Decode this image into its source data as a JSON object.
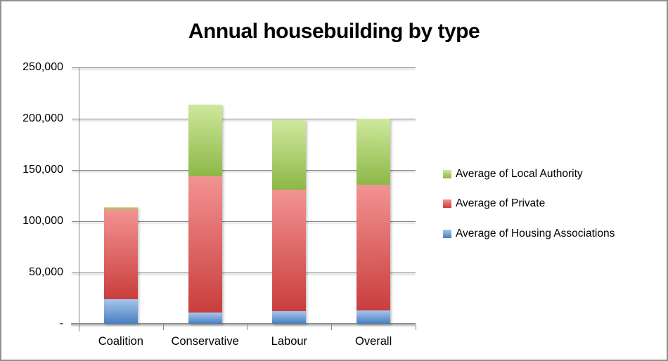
{
  "window": {
    "background": "#ffffff",
    "border_color": "#919191"
  },
  "chart_data": {
    "type": "bar",
    "stacked": true,
    "title": "Annual housebuilding by type",
    "categories": [
      "Coalition",
      "Conservative",
      "Labour",
      "Overall"
    ],
    "series": [
      {
        "name": "Average of Housing Associations",
        "color": "#4F81BD",
        "color_top": "#A6C6EC",
        "color_bottom": "#4A7EC0",
        "values": [
          24000,
          11000,
          12000,
          13000
        ]
      },
      {
        "name": "Average of Private",
        "color": "#C0504D",
        "color_top": "#F29392",
        "color_bottom": "#C93E3D",
        "values": [
          87500,
          133000,
          118500,
          122500
        ]
      },
      {
        "name": "Average of Local Authority",
        "color": "#9BBB59",
        "color_top": "#CFE89C",
        "color_bottom": "#8CB848",
        "values": [
          2500,
          70000,
          68000,
          64500
        ]
      }
    ],
    "totals": [
      114000,
      214000,
      198500,
      200000
    ],
    "xlabel": "",
    "ylabel": "",
    "ylim": [
      0,
      250000
    ],
    "ytick_interval": 50000,
    "ytick_labels": [
      "-",
      "50,000",
      "100,000",
      "150,000",
      "200,000",
      "250,000"
    ],
    "grid": true,
    "axis_color": "#848484",
    "legend_position": "right",
    "legend_top_to_bottom": [
      "Average of Local Authority",
      "Average of Private",
      "Average of Housing Associations"
    ]
  }
}
